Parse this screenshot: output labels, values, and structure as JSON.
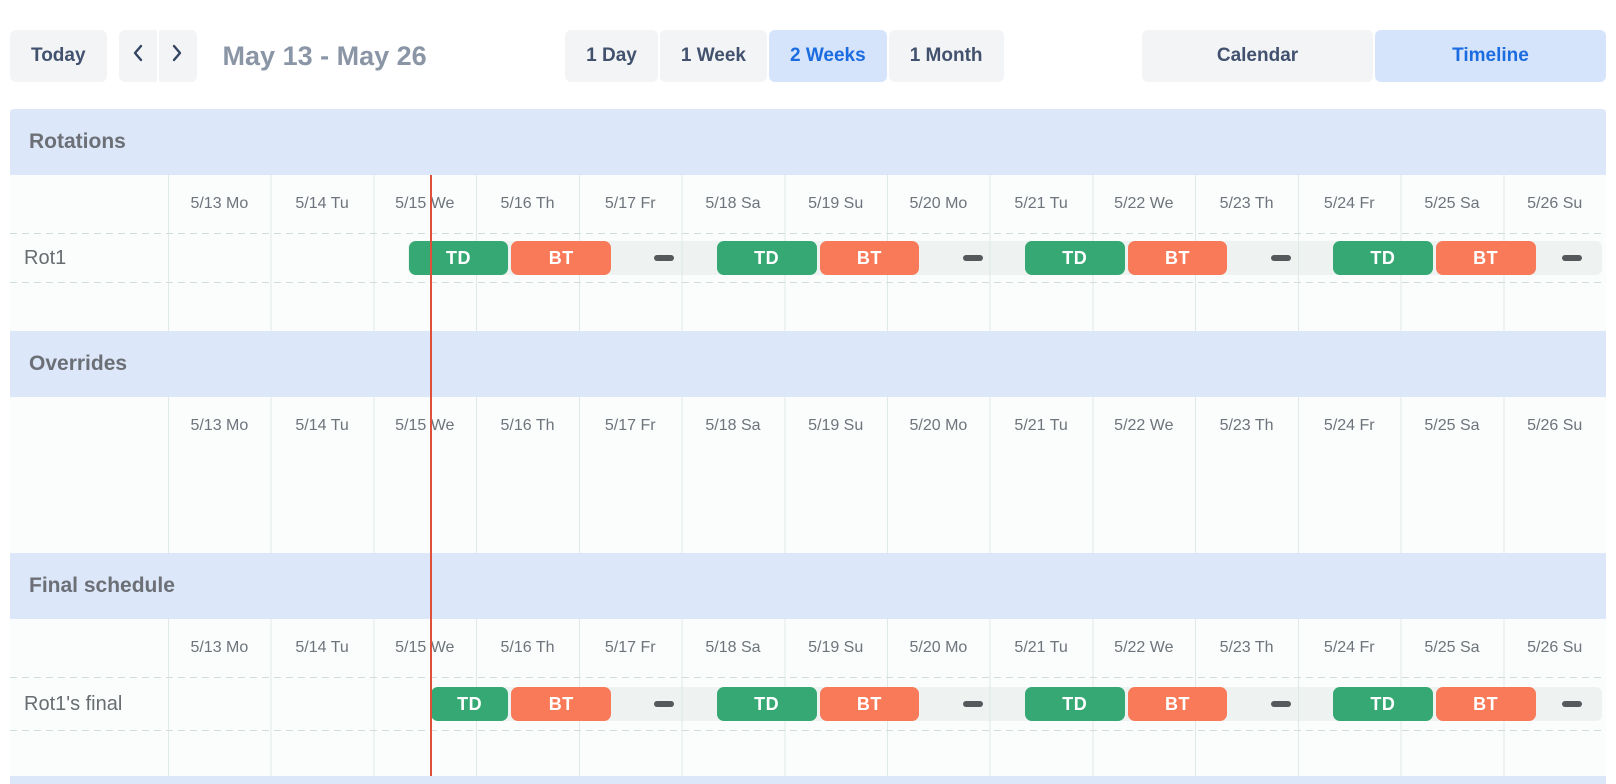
{
  "toolbar": {
    "today_label": "Today",
    "prev_icon": "chevron-left",
    "next_icon": "chevron-right",
    "date_range": "May 13 - May 26",
    "zoom_options": [
      {
        "label": "1 Day",
        "selected": false
      },
      {
        "label": "1 Week",
        "selected": false
      },
      {
        "label": "2 Weeks",
        "selected": true
      },
      {
        "label": "1 Month",
        "selected": false
      }
    ],
    "view_options": [
      {
        "label": "Calendar",
        "selected": false
      },
      {
        "label": "Timeline",
        "selected": true
      }
    ]
  },
  "schedule": {
    "days": [
      "5/13 Mo",
      "5/14 Tu",
      "5/15 We",
      "5/16 Th",
      "5/17 Fr",
      "5/18 Sa",
      "5/19 Su",
      "5/20 Mo",
      "5/21 Tu",
      "5/22 We",
      "5/23 Th",
      "5/24 Fr",
      "5/25 Sa",
      "5/26 Su"
    ],
    "now_day": 2.55,
    "sections": [
      {
        "title": "Rotations",
        "rows": [
          {
            "label": "Rot1",
            "segments": [
              {
                "kind": "shift",
                "label": "TD",
                "color": "green",
                "start": 2.3333,
                "end": 3.3333
              },
              {
                "kind": "shift",
                "label": "BT",
                "color": "orange",
                "start": 3.3333,
                "end": 4.3333
              },
              {
                "kind": "gap",
                "start": 4.3333,
                "end": 5.3333
              },
              {
                "kind": "shift",
                "label": "TD",
                "color": "green",
                "start": 5.3333,
                "end": 6.3333
              },
              {
                "kind": "shift",
                "label": "BT",
                "color": "orange",
                "start": 6.3333,
                "end": 7.3333
              },
              {
                "kind": "gap",
                "start": 7.3333,
                "end": 8.3333
              },
              {
                "kind": "shift",
                "label": "TD",
                "color": "green",
                "start": 8.3333,
                "end": 9.3333
              },
              {
                "kind": "shift",
                "label": "BT",
                "color": "orange",
                "start": 9.3333,
                "end": 10.3333
              },
              {
                "kind": "gap",
                "start": 10.3333,
                "end": 11.3333
              },
              {
                "kind": "shift",
                "label": "TD",
                "color": "green",
                "start": 11.3333,
                "end": 12.3333
              },
              {
                "kind": "shift",
                "label": "BT",
                "color": "orange",
                "start": 12.3333,
                "end": 13.3333
              },
              {
                "kind": "gap",
                "start": 13.3333,
                "end": 14
              }
            ]
          }
        ]
      },
      {
        "title": "Overrides",
        "rows": []
      },
      {
        "title": "Final schedule",
        "rows": [
          {
            "label": "Rot1's final",
            "segments": [
              {
                "kind": "shift",
                "label": "TD",
                "color": "green",
                "start": 2.55,
                "end": 3.3333
              },
              {
                "kind": "shift",
                "label": "BT",
                "color": "orange",
                "start": 3.3333,
                "end": 4.3333
              },
              {
                "kind": "gap",
                "start": 4.3333,
                "end": 5.3333
              },
              {
                "kind": "shift",
                "label": "TD",
                "color": "green",
                "start": 5.3333,
                "end": 6.3333
              },
              {
                "kind": "shift",
                "label": "BT",
                "color": "orange",
                "start": 6.3333,
                "end": 7.3333
              },
              {
                "kind": "gap",
                "start": 7.3333,
                "end": 8.3333
              },
              {
                "kind": "shift",
                "label": "TD",
                "color": "green",
                "start": 8.3333,
                "end": 9.3333
              },
              {
                "kind": "shift",
                "label": "BT",
                "color": "orange",
                "start": 9.3333,
                "end": 10.3333
              },
              {
                "kind": "gap",
                "start": 10.3333,
                "end": 11.3333
              },
              {
                "kind": "shift",
                "label": "TD",
                "color": "green",
                "start": 11.3333,
                "end": 12.3333
              },
              {
                "kind": "shift",
                "label": "BT",
                "color": "orange",
                "start": 12.3333,
                "end": 13.3333
              },
              {
                "kind": "gap",
                "start": 13.3333,
                "end": 14
              }
            ]
          }
        ]
      }
    ],
    "colors": {
      "shift_green": "#35a873",
      "shift_orange": "#f87a58",
      "track": "#eef3f1",
      "gap_dash": "#55595c",
      "band": "#dce7f9",
      "now_line": "#e04f3a",
      "selected_button_bg": "#d6e4fb",
      "selected_button_text": "#1a6ce0"
    }
  }
}
